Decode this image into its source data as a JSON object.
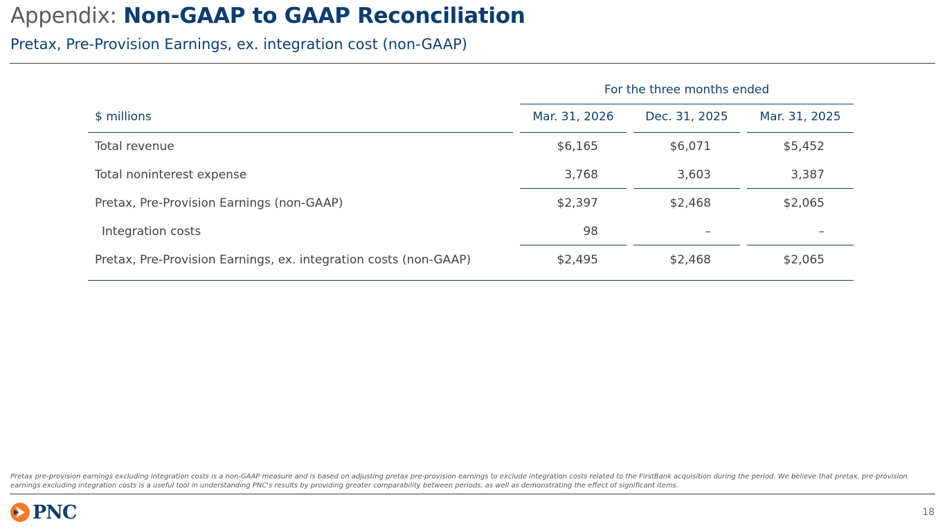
{
  "header": {
    "title_prefix": "Appendix:",
    "title_bold": "Non-GAAP to GAAP Reconciliation",
    "subtitle": "Pretax, Pre-Provision Earnings, ex. integration cost (non-GAAP)"
  },
  "table": {
    "period_header": "For the three months ended",
    "unit_label": "$ millions",
    "columns": [
      "Mar. 31, 2026",
      "Dec. 31, 2025",
      "Mar. 31, 2025"
    ],
    "rows": [
      {
        "label": "Total revenue",
        "values": [
          "$6,165",
          "$6,071",
          "$5,452"
        ]
      },
      {
        "label": "Total noninterest expense",
        "values": [
          "3,768",
          "3,603",
          "3,387"
        ]
      },
      {
        "label": "Pretax, Pre-Provision Earnings (non-GAAP)",
        "values": [
          "$2,397",
          "$2,468",
          "$2,065"
        ]
      },
      {
        "label": "Integration costs",
        "values": [
          "98",
          "–",
          "–"
        ]
      },
      {
        "label": "Pretax, Pre-Provision Earnings, ex. integration costs (non-GAAP)",
        "values": [
          "$2,495",
          "$2,468",
          "$2,065"
        ]
      }
    ]
  },
  "footnote": "Pretax pre-provision earnings excluding integration costs is a non-GAAP measure and is based on adjusting pretax pre-provision earnings to exclude integration costs related to the FirstBank acquisition during the period. We believe that pretax, pre-provision earnings excluding integration costs is a useful tool in understanding PNC's results by providing greater comparability between periods, as well as demonstrating the effect of significant items.",
  "footer": {
    "logo_text": "PNC",
    "page_number": "18",
    "colors": {
      "brand_navy": "#0d3d6b",
      "brand_orange": "#ef7d2d"
    }
  }
}
